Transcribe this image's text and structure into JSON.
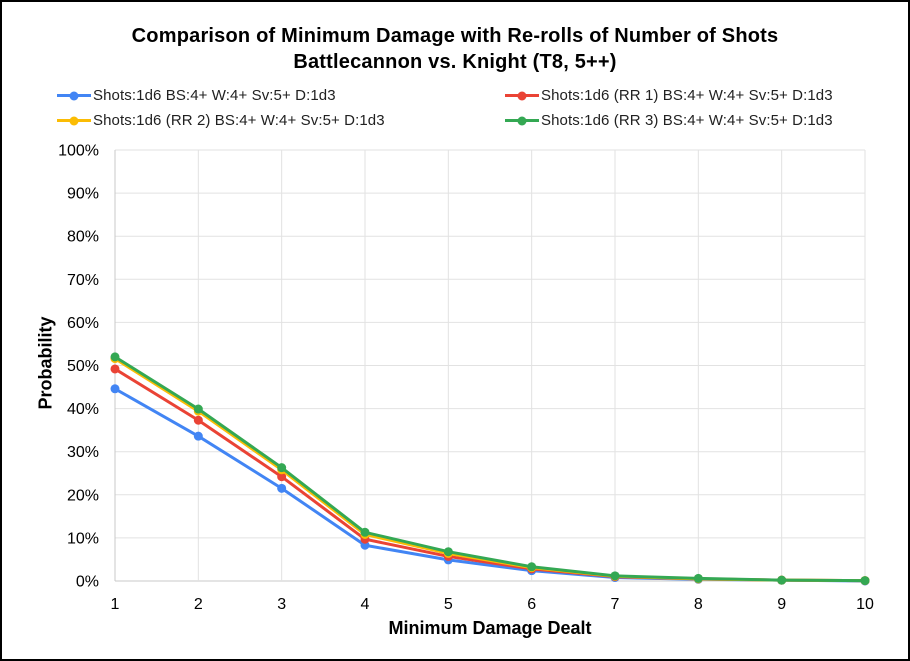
{
  "colors": {
    "background": "#ffffff",
    "frame_border": "#000000",
    "gridline": "#e2e2e2",
    "axis_line": "#c9c9c9",
    "text": "#000000",
    "legend_text": "#212121",
    "series_blue": "#4285F4",
    "series_red": "#EA4335",
    "series_yellow": "#FBBC04",
    "series_green": "#34A853"
  },
  "chart_data": {
    "type": "line",
    "title": "Comparison of Minimum Damage with Re-rolls of Number of Shots",
    "subtitle": "Battlecannon vs. Knight (T8, 5++)",
    "xlabel": "Minimum Damage Dealt",
    "ylabel": "Probability",
    "x": [
      1,
      2,
      3,
      4,
      5,
      6,
      7,
      8,
      9,
      10
    ],
    "xtick_labels": [
      "1",
      "2",
      "3",
      "4",
      "5",
      "6",
      "7",
      "8",
      "9",
      "10"
    ],
    "ytick_labels": [
      "0%",
      "10%",
      "20%",
      "30%",
      "40%",
      "50%",
      "60%",
      "70%",
      "80%",
      "90%",
      "100%"
    ],
    "ylim": [
      0,
      100
    ],
    "grid": true,
    "legend_position": "top, two columns (left column: series 1 and 3, right column: series 2 and 4)",
    "series": [
      {
        "name": "Shots:1d6 BS:4+ W:4+ Sv:5+ D:1d3",
        "color": "#4285F4",
        "values": [
          44.6,
          33.6,
          21.5,
          8.3,
          4.9,
          2.4,
          0.8,
          0.4,
          0.2,
          0.0
        ]
      },
      {
        "name": "Shots:1d6 (RR 1) BS:4+ W:4+ Sv:5+ D:1d3",
        "color": "#EA4335",
        "values": [
          49.2,
          37.3,
          24.2,
          9.7,
          5.7,
          2.8,
          1.0,
          0.5,
          0.2,
          0.1
        ]
      },
      {
        "name": "Shots:1d6 (RR 2) BS:4+ W:4+ Sv:5+ D:1d3",
        "color": "#FBBC04",
        "values": [
          51.6,
          39.4,
          25.8,
          10.8,
          6.4,
          3.1,
          1.1,
          0.5,
          0.2,
          0.1
        ]
      },
      {
        "name": "Shots:1d6 (RR 3) BS:4+ W:4+ Sv:5+ D:1d3",
        "color": "#34A853",
        "values": [
          52.0,
          39.9,
          26.3,
          11.3,
          6.8,
          3.3,
          1.2,
          0.6,
          0.2,
          0.1
        ]
      }
    ]
  }
}
